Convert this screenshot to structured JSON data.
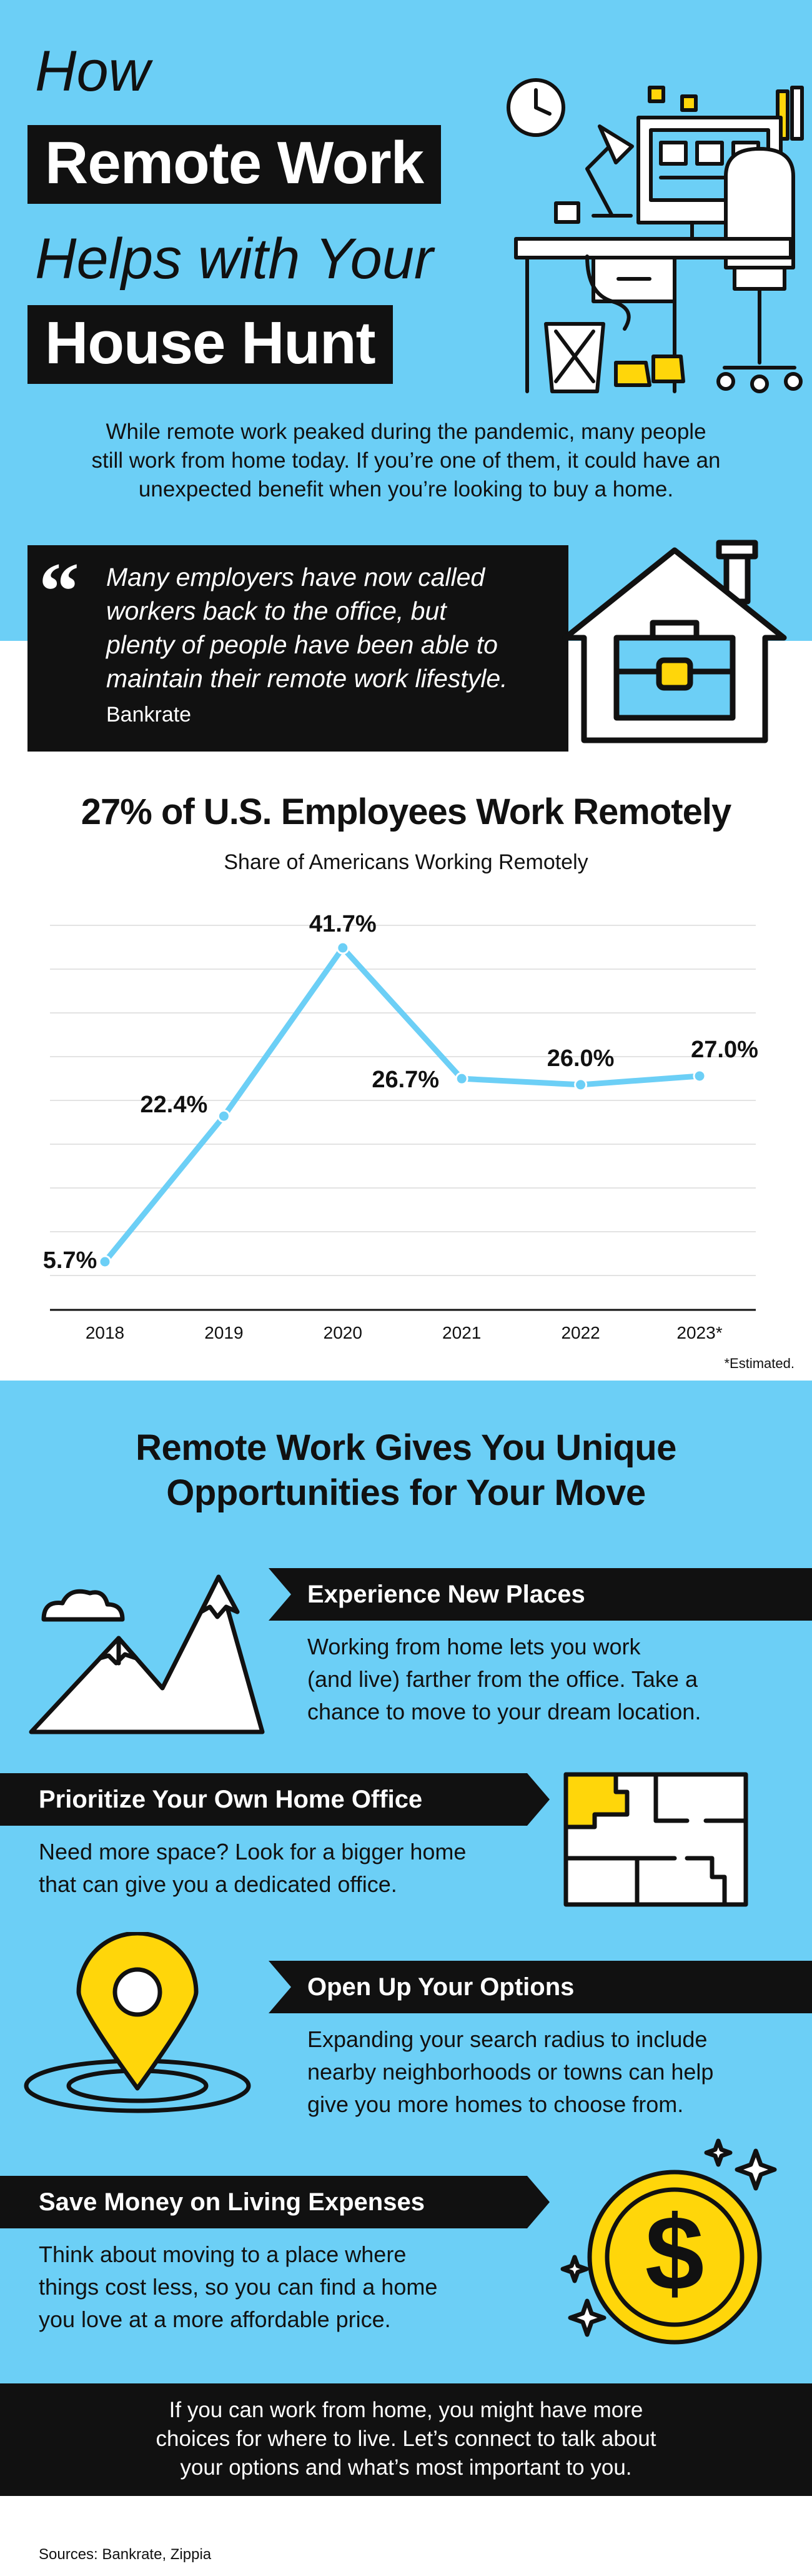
{
  "header": {
    "line1": "How",
    "line2": "Remote Work",
    "line3": "Helps with Your",
    "line4": "House Hunt"
  },
  "intro": {
    "line1": "While remote work peaked during the pandemic, many people",
    "line2": "still work from home today. If you’re one of them, it could have an",
    "line3": "unexpected benefit when you’re looking to buy a home."
  },
  "quote": {
    "mark": "“",
    "line1": "Many employers have now called",
    "line2": "workers back to the office, but",
    "line3": "plenty of people have been able to",
    "line4": "maintain their remote work lifestyle.",
    "source": "Bankrate"
  },
  "chart_data": {
    "type": "line",
    "title": "27% of U.S. Employees Work Remotely",
    "subtitle": "Share of Americans Working Remotely",
    "categories": [
      "2018",
      "2019",
      "2020",
      "2021",
      "2022",
      "2023*"
    ],
    "values": [
      5.7,
      22.4,
      41.7,
      26.7,
      26.0,
      27.0
    ],
    "labels": [
      "5.7%",
      "22.4%",
      "41.7%",
      "26.7%",
      "26.0%",
      "27.0%"
    ],
    "ylim": [
      5.7,
      41.7
    ],
    "grid": true,
    "line_color": "#6ccff6",
    "footnote": "*Estimated."
  },
  "opportunities": {
    "heading_line1": "Remote Work Gives You Unique",
    "heading_line2": "Opportunities for Your Move",
    "items": [
      {
        "title": "Experience New Places",
        "lines": [
          "Working from home lets you work",
          "(and live) farther from the office. Take a",
          "chance to move to your dream location."
        ],
        "icon": "mountains-icon"
      },
      {
        "title": "Prioritize Your Own Home Office",
        "lines": [
          "Need more space? Look for a bigger home",
          "that can give you a dedicated office."
        ],
        "icon": "floor-plan-icon"
      },
      {
        "title": "Open Up Your Options",
        "lines": [
          "Expanding your search radius to include",
          "nearby neighborhoods or towns can help",
          "give you more homes to choose from."
        ],
        "icon": "location-pin-icon"
      },
      {
        "title": "Save Money on Living Expenses",
        "lines": [
          "Think about moving to a place where",
          "things cost less, so you can find a home",
          "you love at a more affordable price."
        ],
        "icon": "coin-icon"
      }
    ]
  },
  "footer": {
    "line1": "If you can work from home, you might have more",
    "line2": "choices for where to live. Let’s connect to talk about",
    "line3": "your options and what’s most important to you."
  },
  "sources": "Sources: Bankrate, Zippia",
  "coin_symbol": "$",
  "colors": {
    "accent_blue": "#6ccff6",
    "black": "#111111",
    "yellow": "#ffd60a"
  }
}
